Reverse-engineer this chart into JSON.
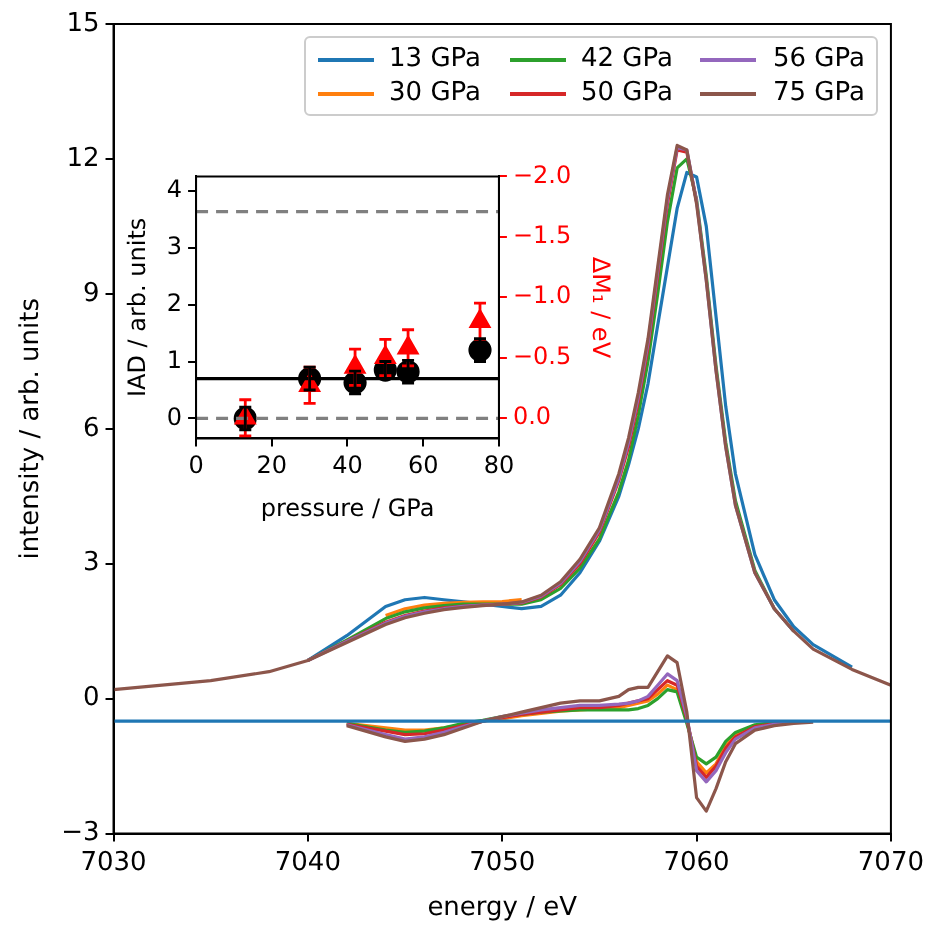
{
  "chart_data": [
    {
      "type": "line",
      "xlabel": "energy / eV",
      "ylabel": "intensity / arb. units",
      "legend": "top right",
      "x": [
        7030,
        7035,
        7038,
        7040,
        7042,
        7044,
        7045,
        7046,
        7047,
        7048,
        7049,
        7050,
        7051,
        7052,
        7053,
        7054,
        7055,
        7056,
        7056.5,
        7057,
        7057.5,
        7058,
        7058.5,
        7059,
        7059.5,
        7060,
        7060.5,
        7061,
        7061.5,
        7062,
        7063,
        7064,
        7065,
        7066,
        7068,
        7070
      ],
      "xlim": [
        7030,
        7070
      ],
      "xticks": [
        7030,
        7040,
        7050,
        7060,
        7070
      ],
      "ylim": [
        -3,
        15
      ],
      "yticks": [
        {
          "value": -3,
          "label": "−3"
        },
        0,
        3,
        6,
        9,
        12,
        15
      ],
      "series": [
        {
          "name": "13 GPa",
          "color": "#1f77b4",
          "values": [
            null,
            null,
            null,
            0.85,
            1.4,
            2.05,
            2.2,
            2.25,
            2.2,
            2.15,
            2.1,
            2.05,
            2.0,
            2.05,
            2.3,
            2.8,
            3.5,
            4.5,
            5.2,
            6.0,
            7.0,
            8.3,
            9.6,
            10.9,
            11.7,
            11.6,
            10.5,
            8.5,
            6.5,
            5.0,
            3.2,
            2.2,
            1.6,
            1.2,
            0.7,
            null
          ]
        },
        {
          "name": "30 GPa",
          "color": "#ff7f0e",
          "values": [
            null,
            null,
            null,
            null,
            null,
            1.85,
            2.0,
            2.08,
            2.12,
            2.14,
            2.15,
            2.16,
            2.2,
            null,
            null,
            null,
            null,
            null,
            null,
            null,
            null,
            null,
            null,
            null,
            null,
            null,
            null,
            null,
            null,
            null,
            null,
            null,
            null,
            null,
            null,
            null
          ]
        },
        {
          "name": "42 GPa",
          "color": "#2ca02c",
          "values": [
            null,
            null,
            null,
            0.85,
            1.3,
            1.78,
            1.93,
            2.02,
            2.07,
            2.1,
            2.1,
            2.1,
            2.1,
            2.2,
            2.45,
            2.9,
            3.55,
            4.6,
            5.3,
            6.3,
            7.5,
            9.0,
            10.6,
            11.8,
            12.0,
            11.1,
            9.4,
            7.4,
            5.7,
            4.4,
            2.85,
            2.0,
            1.5,
            null,
            null,
            null
          ]
        },
        {
          "name": "50 GPa",
          "color": "#d62728",
          "values": [
            null,
            null,
            null,
            0.85,
            1.28,
            1.7,
            1.85,
            1.95,
            2.02,
            2.06,
            2.08,
            2.1,
            2.13,
            2.26,
            2.54,
            3.0,
            3.7,
            4.85,
            5.6,
            6.6,
            7.8,
            9.4,
            11.0,
            12.2,
            12.15,
            11.05,
            null,
            null,
            null,
            null,
            null,
            null,
            null,
            null,
            null,
            null
          ]
        },
        {
          "name": "56 GPa",
          "color": "#9467bd",
          "values": [
            null,
            null,
            null,
            0.85,
            1.27,
            1.68,
            1.83,
            1.93,
            2.0,
            2.05,
            2.08,
            2.1,
            2.14,
            2.28,
            2.57,
            3.05,
            3.75,
            4.9,
            5.7,
            6.7,
            7.9,
            9.5,
            11.1,
            12.25,
            12.2,
            11.05,
            9.3,
            7.3,
            5.6,
            4.3,
            2.8,
            2.0,
            1.5,
            null,
            null,
            null
          ]
        },
        {
          "name": "75 GPa",
          "color": "#8c564b",
          "values": [
            0.2,
            0.4,
            0.6,
            0.85,
            1.25,
            1.65,
            1.8,
            1.9,
            1.98,
            2.03,
            2.07,
            2.1,
            2.15,
            2.3,
            2.6,
            3.1,
            3.8,
            5.0,
            5.8,
            6.8,
            8.0,
            9.6,
            11.2,
            12.3,
            12.2,
            11.0,
            9.3,
            7.3,
            5.6,
            4.3,
            2.8,
            2.0,
            1.5,
            1.1,
            0.65,
            0.3
          ]
        },
        {
          "color": "#ff7f0e",
          "values": [
            null,
            null,
            null,
            null,
            -0.55,
            -0.65,
            -0.7,
            -0.7,
            -0.65,
            -0.58,
            -0.5,
            -0.45,
            -0.38,
            -0.33,
            -0.28,
            -0.25,
            -0.22,
            -0.2,
            -0.15,
            -0.1,
            -0.05,
            0.1,
            0.3,
            0.2,
            -0.5,
            -1.4,
            -1.65,
            -1.45,
            -1.05,
            -0.8,
            -0.6,
            null,
            null,
            null,
            null,
            null
          ]
        },
        {
          "color": "#2ca02c",
          "values": [
            null,
            null,
            null,
            null,
            -0.55,
            -0.7,
            -0.75,
            -0.72,
            -0.65,
            -0.55,
            -0.48,
            -0.4,
            -0.35,
            -0.3,
            -0.27,
            -0.25,
            -0.25,
            -0.25,
            -0.25,
            -0.22,
            -0.15,
            0.0,
            0.2,
            0.15,
            -0.55,
            -1.3,
            -1.45,
            -1.3,
            -0.95,
            -0.75,
            -0.58,
            -0.53,
            -0.51,
            null,
            null,
            null
          ]
        },
        {
          "color": "#d62728",
          "values": [
            null,
            null,
            null,
            null,
            -0.57,
            -0.72,
            -0.8,
            -0.78,
            -0.7,
            -0.6,
            -0.5,
            -0.42,
            -0.35,
            -0.3,
            -0.25,
            -0.2,
            -0.2,
            -0.15,
            -0.1,
            -0.05,
            0.0,
            0.2,
            0.4,
            0.3,
            -0.45,
            -1.5,
            -1.75,
            -1.5,
            -1.1,
            -0.85,
            -0.62,
            -0.56,
            -0.52,
            null,
            null,
            null
          ]
        },
        {
          "color": "#9467bd",
          "values": [
            null,
            null,
            null,
            null,
            -0.58,
            -0.8,
            -0.9,
            -0.85,
            -0.75,
            -0.62,
            -0.5,
            -0.4,
            -0.32,
            -0.25,
            -0.2,
            -0.15,
            -0.15,
            -0.12,
            -0.1,
            -0.05,
            0.05,
            0.3,
            0.55,
            0.4,
            -0.4,
            -1.6,
            -1.85,
            -1.6,
            -1.2,
            -0.9,
            -0.65,
            -0.57,
            -0.53,
            null,
            null,
            null
          ]
        },
        {
          "color": "#8c564b",
          "values": [
            null,
            null,
            null,
            null,
            -0.6,
            -0.85,
            -0.95,
            -0.9,
            -0.8,
            -0.65,
            -0.5,
            -0.4,
            -0.3,
            -0.2,
            -0.1,
            -0.05,
            -0.05,
            0.05,
            0.2,
            0.25,
            0.25,
            0.6,
            0.95,
            0.8,
            -0.3,
            -2.2,
            -2.5,
            -2.0,
            -1.4,
            -1.0,
            -0.7,
            -0.6,
            -0.55,
            -0.52,
            null,
            null
          ]
        },
        {
          "color": "#1f77b4",
          "values": [
            -0.5,
            -0.5,
            -0.5,
            -0.5,
            -0.5,
            -0.5,
            -0.5,
            -0.5,
            -0.5,
            -0.5,
            -0.5,
            -0.5,
            -0.5,
            -0.5,
            -0.5,
            -0.5,
            -0.5,
            -0.5,
            -0.5,
            -0.5,
            -0.5,
            -0.5,
            -0.5,
            -0.5,
            -0.5,
            -0.5,
            -0.5,
            -0.5,
            -0.5,
            -0.5,
            -0.5,
            -0.5,
            -0.5,
            -0.5,
            -0.5,
            -0.5
          ]
        }
      ]
    },
    {
      "type": "scatter",
      "xlabel": "pressure / GPa",
      "ylabel": "IAD / arb. units",
      "y2label": "ΔM₁ / eV",
      "x": [
        13,
        30,
        42,
        50,
        56,
        75
      ],
      "xlim": [
        0,
        80
      ],
      "xticks": [
        0,
        20,
        40,
        60,
        80
      ],
      "ylim": [
        -0.35,
        4.25
      ],
      "yticks": [
        0,
        1,
        2,
        3,
        4
      ],
      "y2lim": [
        0.17,
        -2.0
      ],
      "y2ticks": [
        {
          "value": 0,
          "label": "0.0"
        },
        {
          "value": -0.5,
          "label": "−0.5"
        },
        {
          "value": -1.0,
          "label": "−1.0"
        },
        {
          "value": -1.5,
          "label": "−1.5"
        },
        {
          "value": -2.0,
          "label": "−2.0"
        }
      ],
      "ref_lines": [
        {
          "axis": "y",
          "value": 0.7,
          "color": "#000000",
          "line_style": "solid"
        },
        {
          "axis": "y",
          "value": 0,
          "color": "#808080",
          "line_style": "dashed"
        },
        {
          "axis": "y",
          "value": 3.63,
          "color": "#808080",
          "line_style": "dashed"
        }
      ],
      "series": [
        {
          "color": "#000000",
          "marker": "circle",
          "values": [
            0.0,
            0.7,
            0.63,
            0.85,
            0.82,
            1.2
          ],
          "errors": [
            0.2,
            0.2,
            0.2,
            0.15,
            0.2,
            0.2
          ]
        },
        {
          "color": "#ff0000",
          "marker": "triangle",
          "axis": "y2",
          "values": [
            0.0,
            -0.27,
            -0.42,
            -0.5,
            -0.58,
            -0.8
          ],
          "errors": [
            0.15,
            0.15,
            0.15,
            0.15,
            0.15,
            0.15
          ]
        }
      ]
    }
  ]
}
